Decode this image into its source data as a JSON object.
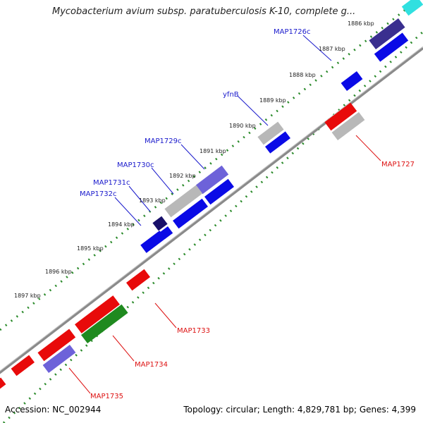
{
  "header": {
    "title": "Mycobacterium avium subsp. paratuberculosis K-10, complete g..."
  },
  "footer": {
    "accession": "Accession: NC_002944",
    "summary": "Topology: circular; Length: 4,829,781 bp; Genes: 4,399"
  },
  "ticks": [
    "1886 kbp",
    "1887 kbp",
    "1888 kbp",
    "1889 kbp",
    "1890 kbp",
    "1891 kbp",
    "1892 kbp",
    "1893 kbp",
    "1894 kbp",
    "1895 kbp",
    "1896 kbp",
    "1897 kbp"
  ],
  "gene_labels": {
    "MAP1726c": "MAP1726c",
    "yfnB": "yfnB",
    "MAP1729c": "MAP1729c",
    "MAP1730c": "MAP1730c",
    "MAP1731c": "MAP1731c",
    "MAP1732c": "MAP1732c",
    "MAP1727": "MAP1727",
    "MAP1733": "MAP1733",
    "MAP1734": "MAP1734",
    "MAP1735": "MAP1735"
  },
  "colors": {
    "backbone": "#8a8a8a",
    "forward_cds": "#0a0ae6",
    "reverse_cds": "#e80a0a",
    "grey_feature": "#b8b8b8",
    "light_blue_feature": "#6d62d9",
    "dark_navy_feature": "#18106a",
    "cyan_feature": "#30e0e0",
    "green_feature": "#1f8a1f",
    "tick_dots": "#2a8a2a"
  }
}
